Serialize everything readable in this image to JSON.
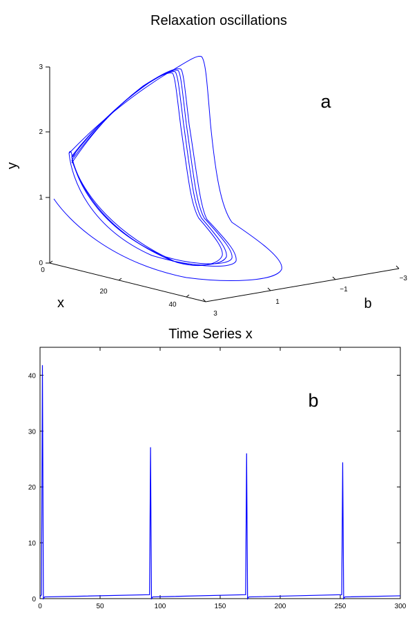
{
  "figure_title": "Relaxation oscillations",
  "chart_data": [
    {
      "type": "line",
      "panel_label": "a",
      "title": "",
      "xlabel": "x",
      "ylabel": "y",
      "zlabel": "b",
      "x_ticks": [
        "0",
        "20",
        "40"
      ],
      "y_ticks": [
        "0",
        "1",
        "2",
        "3"
      ],
      "b_ticks": [
        "3",
        "1",
        "−1",
        "−3"
      ],
      "xlim": [
        0,
        45
      ],
      "ylim": [
        0,
        3
      ],
      "blim": [
        -3,
        3
      ],
      "color": "#0000ff",
      "series": [
        {
          "values": "3-D phase-space trajectory (x, b, y) spiralling onto a relaxation limit cycle"
        }
      ]
    },
    {
      "type": "line",
      "panel_label": "b",
      "title": "Time Series x",
      "xlabel": "",
      "ylabel": "",
      "xlim": [
        0,
        300
      ],
      "ylim": [
        0,
        45
      ],
      "x_ticks": [
        "0",
        "50",
        "100",
        "150",
        "200",
        "250",
        "300"
      ],
      "y_ticks": [
        "0",
        "10",
        "20",
        "30",
        "40"
      ],
      "grid": false,
      "color": "#0000ff",
      "baseline": 0.3,
      "spikes": [
        {
          "t": 2,
          "peak": 41.8
        },
        {
          "t": 92,
          "peak": 27.1
        },
        {
          "t": 172,
          "peak": 26.0
        },
        {
          "t": 252,
          "peak": 24.4
        }
      ]
    }
  ]
}
